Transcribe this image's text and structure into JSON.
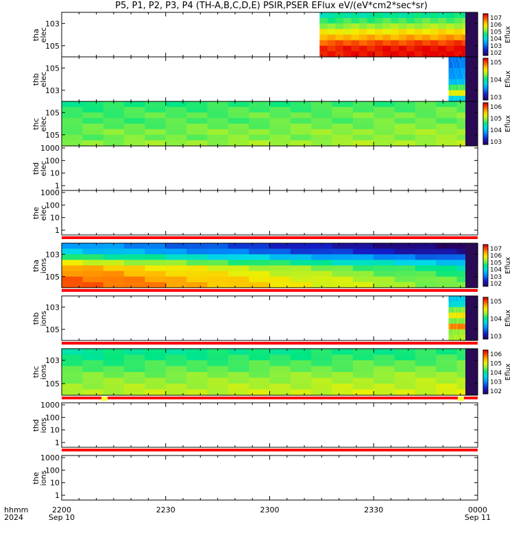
{
  "title": "P5, P1, P2, P3, P4 (TH-A,B,C,D,E) PSIR,PSER EFlux eV/(eV*cm2*sec*sr)",
  "x_header": {
    "line1": "hhmm",
    "line2": "2024"
  },
  "x_ticks": [
    {
      "label": "2200",
      "sub": "Sep 10"
    },
    {
      "label": "2230",
      "sub": ""
    },
    {
      "label": "2300",
      "sub": ""
    },
    {
      "label": "2330",
      "sub": ""
    },
    {
      "label": "0000",
      "sub": "Sep 11"
    }
  ],
  "colorbar_label": "Eflux",
  "colors": {
    "quality_bar": "#ff0000",
    "quality_flag": "#ffff33"
  },
  "chart_data": {
    "type": "heatmap",
    "x_range": [
      "2200",
      "0000"
    ],
    "panels": [
      {
        "probe": "tha",
        "species": "elec",
        "ylabel": [
          "tha",
          "elec"
        ],
        "yticks": [
          "10^3",
          "10^5"
        ],
        "data_start": 0.62,
        "color_ticks": [
          "10^7",
          "10^6",
          "10^5",
          "10^4",
          "10^3",
          "10^2"
        ],
        "has_colorbar": true,
        "rows": [
          0.48,
          0.55,
          0.62,
          0.72,
          0.8,
          0.9,
          0.96,
          0.97
        ]
      },
      {
        "probe": "thb",
        "species": "elec",
        "ylabel": [
          "thb",
          "elec"
        ],
        "yticks": [
          "10^5",
          "10^3"
        ],
        "data_start": 0.93,
        "color_ticks": [
          "10^5",
          "10^4",
          "10^3"
        ],
        "has_colorbar": true,
        "rows": [
          0.26,
          0.26,
          0.3,
          0.3,
          0.36,
          0.56,
          0.7,
          0.4
        ]
      },
      {
        "probe": "thc",
        "species": "elec",
        "ylabel": [
          "thc",
          "elec"
        ],
        "yticks": [
          "10^5",
          "10^5"
        ],
        "data_start": 0.0,
        "color_ticks": [
          "10^6",
          "10^5",
          "10^4",
          "10^3"
        ],
        "has_colorbar": true,
        "rows": [
          0.53,
          0.55,
          0.57,
          0.56,
          0.58,
          0.6,
          0.59,
          0.62
        ]
      },
      {
        "probe": "thd",
        "species": "elec",
        "ylabel": [
          "thd",
          "elec"
        ],
        "yticks": [
          "1000",
          "100",
          "10",
          "1"
        ],
        "data_start": null,
        "has_colorbar": false,
        "rows": []
      },
      {
        "probe": "the",
        "species": "elec",
        "ylabel": [
          "the",
          "elec"
        ],
        "yticks": [
          "1000",
          "100",
          "10",
          "1"
        ],
        "data_start": null,
        "has_colorbar": false,
        "rows": []
      },
      {
        "probe": "tha",
        "species": "ions",
        "ylabel": [
          "tha",
          "ions"
        ],
        "yticks": [
          "10^3",
          "10^5"
        ],
        "data_start": 0.0,
        "color_ticks": [
          "10^7",
          "10^6",
          "10^5",
          "10^4",
          "10^3",
          "10^2"
        ],
        "has_colorbar": true,
        "rows": [
          0.33,
          0.4,
          0.55,
          0.7,
          0.82,
          0.86,
          0.9,
          0.92
        ]
      },
      {
        "probe": "thb",
        "species": "ions",
        "ylabel": [
          "thb",
          "ions"
        ],
        "yticks": [
          "10^3",
          "10^5"
        ],
        "data_start": 0.93,
        "color_ticks": [
          "10^5",
          "10^4",
          "10^3"
        ],
        "has_colorbar": true,
        "rows": [
          0.38,
          0.42,
          0.6,
          0.72,
          0.6,
          0.85,
          0.62,
          0.64
        ]
      },
      {
        "probe": "thc",
        "species": "ions",
        "ylabel": [
          "thc",
          "ions"
        ],
        "yticks": [
          "10^3",
          "10^5"
        ],
        "data_start": 0.0,
        "color_ticks": [
          "10^6",
          "10^5",
          "10^4",
          "10^3",
          "10^2"
        ],
        "has_colorbar": true,
        "rows": [
          0.5,
          0.52,
          0.55,
          0.57,
          0.6,
          0.62,
          0.64,
          0.66
        ]
      },
      {
        "probe": "thd",
        "species": "ions",
        "ylabel": [
          "thd",
          "ions"
        ],
        "yticks": [
          "1000",
          "100",
          "10",
          "1"
        ],
        "data_start": null,
        "has_colorbar": false,
        "rows": []
      },
      {
        "probe": "the",
        "species": "ions",
        "ylabel": [
          "the",
          "ions"
        ],
        "yticks": [
          "1000",
          "100",
          "10",
          "1"
        ],
        "data_start": null,
        "has_colorbar": false,
        "rows": []
      }
    ]
  }
}
